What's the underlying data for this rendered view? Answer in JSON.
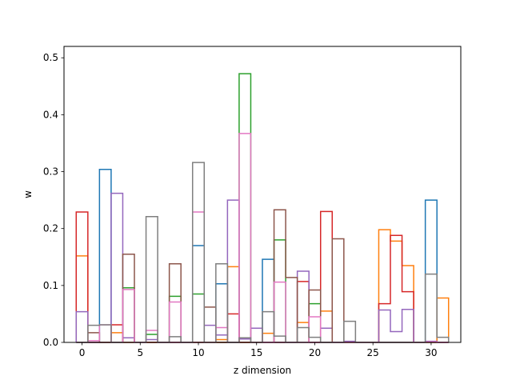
{
  "chart_data": {
    "type": "line",
    "step": true,
    "title": "",
    "xlabel": "z dimension",
    "ylabel": "w",
    "xlim": [
      -1.55,
      32.55
    ],
    "ylim": [
      0,
      0.52
    ],
    "xticks": [
      0,
      5,
      10,
      15,
      20,
      25,
      30
    ],
    "yticks": [
      0.0,
      0.1,
      0.2,
      0.3,
      0.4,
      0.5
    ],
    "grid": false,
    "bins": [
      0,
      1,
      2,
      3,
      4,
      5,
      6,
      7,
      8,
      9,
      10,
      11,
      12,
      13,
      14,
      15,
      16,
      17,
      18,
      19,
      20,
      21,
      22,
      23,
      24,
      25,
      26,
      27,
      28,
      29,
      30,
      31
    ],
    "series": [
      {
        "color": "#1f77b4",
        "values": [
          0,
          0,
          0.304,
          0,
          0,
          0,
          0,
          0,
          0,
          0,
          0.17,
          0,
          0.103,
          0,
          0,
          0,
          0.146,
          0,
          0,
          0,
          0,
          0,
          0,
          0,
          0,
          0,
          0,
          0,
          0,
          0,
          0.25,
          0
        ]
      },
      {
        "color": "#ff7f0e",
        "values": [
          0.152,
          0,
          0,
          0.017,
          0,
          0,
          0,
          0,
          0,
          0,
          0,
          0,
          0.005,
          0.133,
          0,
          0,
          0.016,
          0,
          0,
          0.035,
          0,
          0.055,
          0,
          0,
          0,
          0,
          0.198,
          0.178,
          0.135,
          0,
          0,
          0.078
        ]
      },
      {
        "color": "#2ca02c",
        "values": [
          0,
          0,
          0,
          0,
          0.096,
          0,
          0.014,
          0,
          0.081,
          0,
          0.085,
          0,
          0,
          0,
          0.472,
          0,
          0,
          0.18,
          0,
          0,
          0.068,
          0,
          0,
          0,
          0,
          0,
          0,
          0,
          0,
          0,
          0,
          0
        ]
      },
      {
        "color": "#d62728",
        "values": [
          0.229,
          0,
          0,
          0.031,
          0,
          0,
          0,
          0,
          0,
          0,
          0,
          0,
          0,
          0.05,
          0,
          0,
          0,
          0,
          0,
          0.107,
          0,
          0.23,
          0,
          0,
          0,
          0,
          0.068,
          0.188,
          0.089,
          0,
          0,
          0
        ]
      },
      {
        "color": "#9467bd",
        "values": [
          0.054,
          0,
          0,
          0.262,
          0.008,
          0,
          0.005,
          0,
          0,
          0,
          0,
          0.03,
          0.013,
          0.25,
          0.006,
          0.025,
          0,
          0,
          0,
          0.125,
          0,
          0.025,
          0,
          0.002,
          0,
          0,
          0.057,
          0.019,
          0.058,
          0,
          0.002,
          0
        ]
      },
      {
        "color": "#8c564b",
        "values": [
          0,
          0.017,
          0,
          0,
          0.155,
          0,
          0,
          0,
          0.138,
          0,
          0,
          0.062,
          0,
          0,
          0,
          0,
          0,
          0.233,
          0.114,
          0,
          0.092,
          0,
          0.182,
          0,
          0,
          0,
          0,
          0,
          0,
          0,
          0,
          0
        ]
      },
      {
        "color": "#e377c2",
        "values": [
          0,
          0.003,
          0.031,
          0,
          0.093,
          0,
          0.021,
          0,
          0.071,
          0,
          0.229,
          0,
          0.026,
          0,
          0.367,
          0,
          0,
          0.106,
          0,
          0,
          0.045,
          0,
          0,
          0,
          0,
          0,
          0,
          0,
          0,
          0,
          0.001,
          0
        ]
      },
      {
        "color": "#7f7f7f",
        "values": [
          0,
          0.03,
          0.031,
          0,
          0,
          0,
          0.221,
          0,
          0.01,
          0,
          0.316,
          0,
          0.138,
          0,
          0.008,
          0,
          0.054,
          0.011,
          0,
          0.026,
          0.009,
          0,
          0,
          0.037,
          0,
          0,
          0,
          0,
          0,
          0,
          0.12,
          0.009
        ]
      }
    ]
  }
}
